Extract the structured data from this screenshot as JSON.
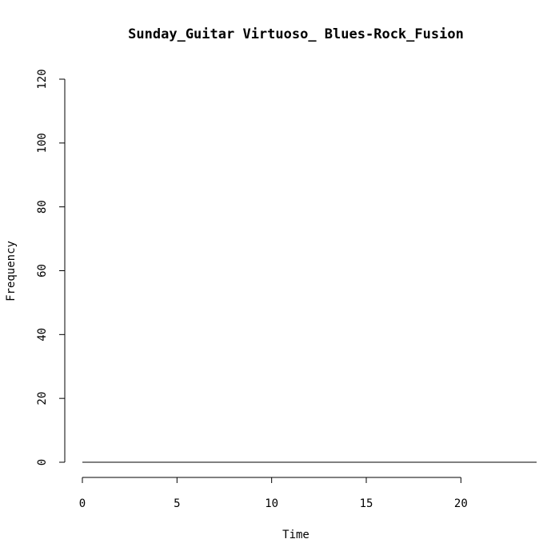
{
  "chart_data": {
    "type": "line",
    "title": "Sunday_Guitar Virtuoso_ Blues-Rock_Fusion",
    "xlabel": "Time",
    "ylabel": "Frequency",
    "xlim": [
      0,
      24
    ],
    "ylim": [
      0,
      120
    ],
    "x_ticks": [
      0,
      5,
      10,
      15,
      20
    ],
    "y_ticks": [
      0,
      20,
      40,
      60,
      80,
      100,
      120
    ],
    "grid": false,
    "series": [
      {
        "x": [
          0,
          24
        ],
        "values": [
          0,
          0
        ],
        "color": "#000000"
      }
    ]
  }
}
